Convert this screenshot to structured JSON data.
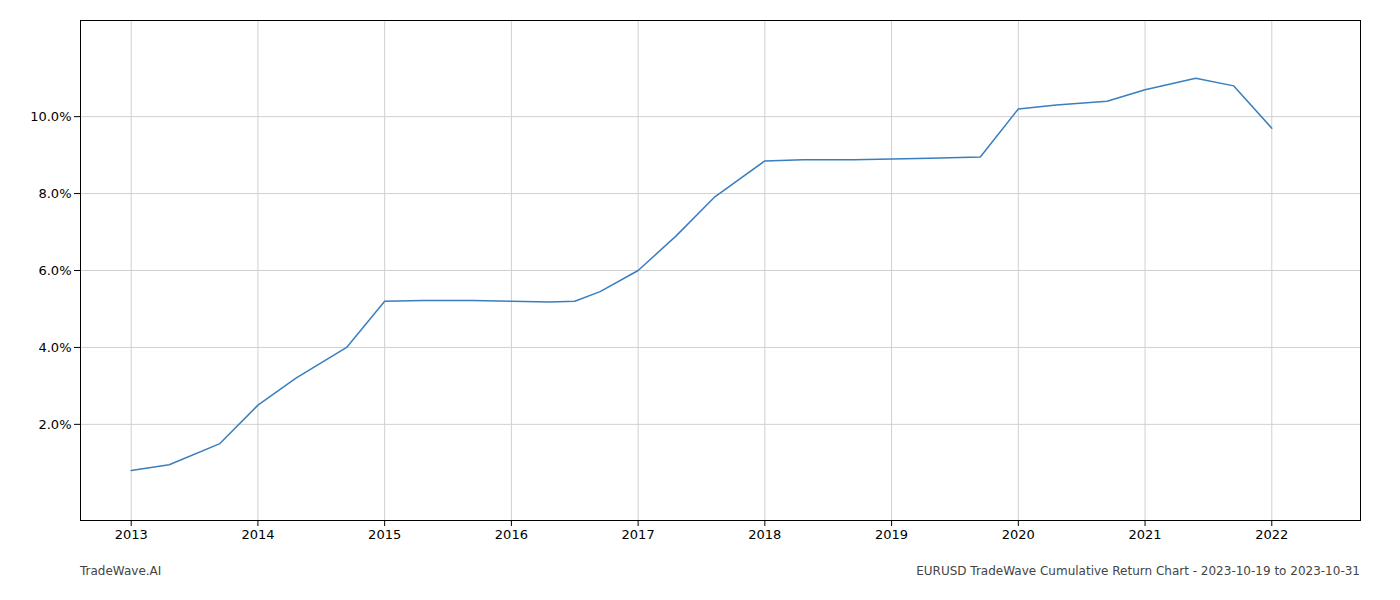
{
  "chart_data": {
    "type": "line",
    "x": [
      2013.0,
      2013.3,
      2013.7,
      2014.0,
      2014.3,
      2014.7,
      2015.0,
      2015.3,
      2015.7,
      2016.0,
      2016.3,
      2016.5,
      2016.7,
      2017.0,
      2017.3,
      2017.6,
      2018.0,
      2018.3,
      2018.7,
      2019.0,
      2019.3,
      2019.7,
      2020.0,
      2020.3,
      2020.7,
      2021.0,
      2021.2,
      2021.4,
      2021.7,
      2022.0
    ],
    "values": [
      0.008,
      0.0095,
      0.015,
      0.025,
      0.032,
      0.04,
      0.052,
      0.0522,
      0.0522,
      0.052,
      0.0518,
      0.052,
      0.0545,
      0.06,
      0.069,
      0.079,
      0.0885,
      0.0888,
      0.0888,
      0.089,
      0.0892,
      0.0895,
      0.102,
      0.103,
      0.104,
      0.107,
      0.1085,
      0.11,
      0.108,
      0.097
    ],
    "color": "#3a7ebf",
    "xlim": [
      2012.6,
      2022.7
    ],
    "xticks": [
      2013,
      2014,
      2015,
      2016,
      2017,
      2018,
      2019,
      2020,
      2021,
      2022
    ],
    "ylim": [
      -0.005,
      0.125
    ],
    "yticks": [
      {
        "value": 0.02,
        "label": "2.0%"
      },
      {
        "value": 0.04,
        "label": "4.0%"
      },
      {
        "value": 0.06,
        "label": "6.0%"
      },
      {
        "value": 0.08,
        "label": "8.0%"
      },
      {
        "value": 0.1,
        "label": "10.0%"
      }
    ],
    "grid": true,
    "annotations": [
      "TradeWave.AI",
      "EURUSD TradeWave Cumulative Return Chart - 2023-10-19 to 2023-10-31"
    ]
  }
}
